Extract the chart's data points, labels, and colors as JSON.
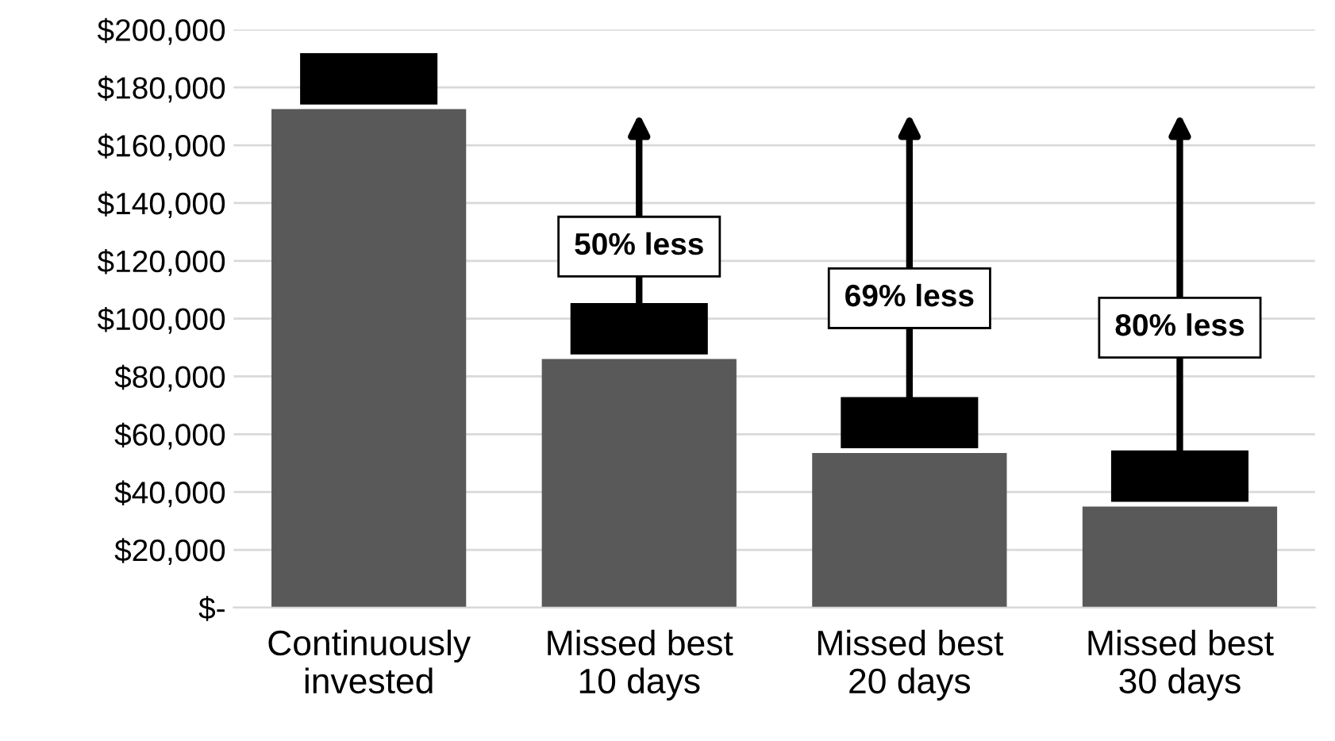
{
  "chart_data": {
    "type": "bar",
    "categories": [
      "Continuously\ninvested",
      "Missed best\n10 days",
      "Missed best\n20 days",
      "Missed best\n30 days"
    ],
    "values": [
      172500,
      86000,
      53500,
      35000
    ],
    "color": "#595959",
    "ylim": [
      0,
      200000
    ],
    "yticks": [
      {
        "value": 0,
        "label": "$-"
      },
      {
        "value": 20000,
        "label": "$20,000"
      },
      {
        "value": 40000,
        "label": "$40,000"
      },
      {
        "value": 60000,
        "label": "$60,000"
      },
      {
        "value": 80000,
        "label": "$80,000"
      },
      {
        "value": 100000,
        "label": "$100,000"
      },
      {
        "value": 120000,
        "label": "$120,000"
      },
      {
        "value": 140000,
        "label": "$140,000"
      },
      {
        "value": 160000,
        "label": "$160,000"
      },
      {
        "value": 180000,
        "label": "$180,000"
      },
      {
        "value": 200000,
        "label": "$200,000"
      }
    ],
    "grid": "y",
    "annotations": [
      "50% less",
      "69% less",
      "80% less"
    ]
  }
}
